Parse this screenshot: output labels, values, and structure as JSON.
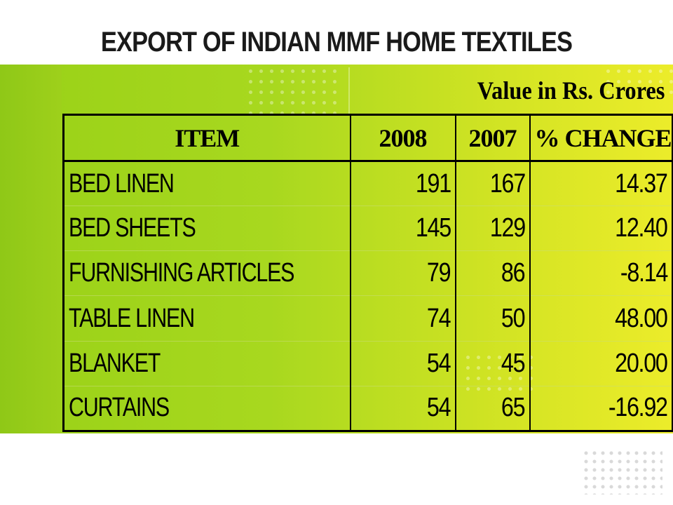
{
  "title": "EXPORT OF INDIAN MMF HOME TEXTILES",
  "units": "Value in Rs. Crores",
  "table": {
    "headers": [
      "ITEM",
      "2008",
      "2007",
      "% CHANGE"
    ],
    "rows": [
      [
        "BED LINEN",
        "191",
        "167",
        "14.37"
      ],
      [
        "BED SHEETS",
        "145",
        "129",
        "12.40"
      ],
      [
        "FURNISHING ARTICLES",
        "79",
        "86",
        "-8.14"
      ],
      [
        "TABLE LINEN",
        "74",
        "50",
        "48.00"
      ],
      [
        "BLANKET",
        "54",
        "45",
        "20.00"
      ],
      [
        "CURTAINS",
        "54",
        "65",
        "-16.92"
      ]
    ]
  },
  "colors": {
    "band_left": "#99d117",
    "band_right": "#ecec2a",
    "text": "#000000"
  }
}
